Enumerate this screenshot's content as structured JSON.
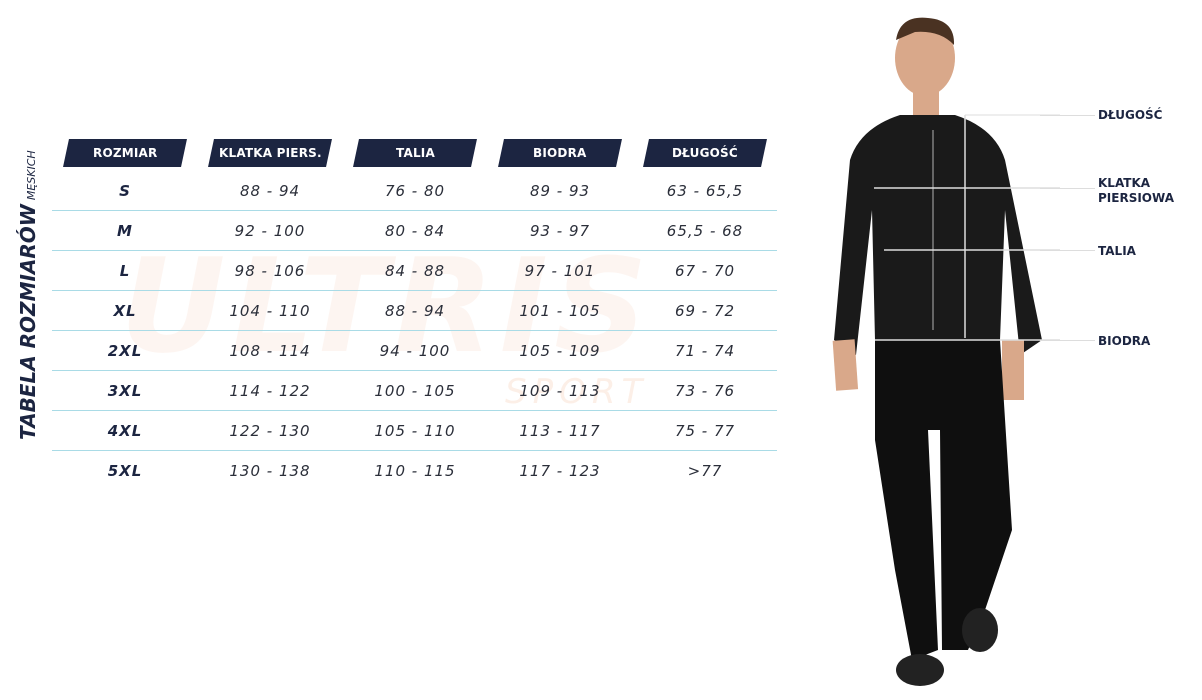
{
  "watermark": {
    "brand": "ULTRIS",
    "sub": "SPORT"
  },
  "title": {
    "main": "TABELA ROZMIARÓW",
    "sub": "MĘSKICH"
  },
  "table": {
    "headers": [
      "ROZMIAR",
      "KLATKA PIERS.",
      "TALIA",
      "BIODRA",
      "DŁUGOŚĆ"
    ],
    "rows": [
      [
        "S",
        "88 - 94",
        "76 - 80",
        "89 - 93",
        "63 - 65,5"
      ],
      [
        "M",
        "92 - 100",
        "80 - 84",
        "93 - 97",
        "65,5 - 68"
      ],
      [
        "L",
        "98 - 106",
        "84 - 88",
        "97 - 101",
        "67 - 70"
      ],
      [
        "XL",
        "104 - 110",
        "88 - 94",
        "101 - 105",
        "69 - 72"
      ],
      [
        "2XL",
        "108 - 114",
        "94 - 100",
        "105 - 109",
        "71 - 74"
      ],
      [
        "3XL",
        "114 - 122",
        "100 - 105",
        "109 - 113",
        "73 - 76"
      ],
      [
        "4XL",
        "122 - 130",
        "105 - 110",
        "113 - 117",
        "75 - 77"
      ],
      [
        "5XL",
        "130 - 138",
        "110 - 115",
        "117 - 123",
        ">77"
      ]
    ]
  },
  "figure_labels": {
    "length": "DŁUGOŚĆ",
    "chest_1": "KLATKA",
    "chest_2": "PIERSIOWA",
    "waist": "TALIA",
    "hips": "BIODRA"
  },
  "colors": {
    "header_bg": "#1c2541",
    "rule": "#a9dbe6",
    "text": "#2b2f3a"
  }
}
